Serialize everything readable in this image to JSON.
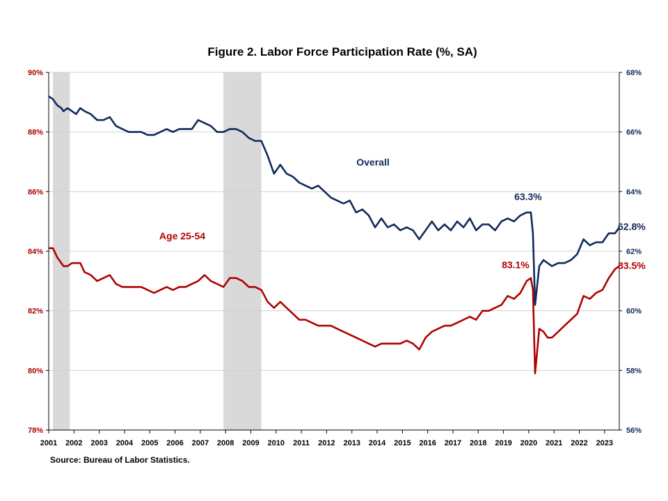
{
  "chart_data": {
    "type": "line",
    "title": "Figure 2. Labor Force Participation  Rate (%, SA)",
    "source": "Source: Bureau of Labor Statistics.",
    "x_ticks": [
      "2001",
      "2002",
      "2003",
      "2004",
      "2005",
      "2006",
      "2007",
      "2008",
      "2009",
      "2010",
      "2011",
      "2012",
      "2013",
      "2014",
      "2015",
      "2016",
      "2017",
      "2018",
      "2019",
      "2020",
      "2021",
      "2022",
      "2023"
    ],
    "y_left": {
      "ticks": [
        "78%",
        "80%",
        "82%",
        "84%",
        "86%",
        "88%",
        "90%"
      ],
      "ylim": [
        78,
        90
      ],
      "color": "#b00000"
    },
    "y_right": {
      "ticks": [
        "56%",
        "58%",
        "60%",
        "62%",
        "64%",
        "66%",
        "68%"
      ],
      "ylim": [
        56,
        68
      ],
      "color": "#0f2a5a"
    },
    "xlim": [
      "2001-01",
      "2023-08"
    ],
    "recessions": [
      {
        "start": "2001-03",
        "end": "2001-11"
      },
      {
        "start": "2007-12",
        "end": "2009-06"
      }
    ],
    "recession_color": "#d9d9d9",
    "series": [
      {
        "name": "Overall",
        "axis": "right",
        "color": "#0f2a5a",
        "points": [
          [
            "2001-01",
            67.2
          ],
          [
            "2001-03",
            67.1
          ],
          [
            "2001-05",
            66.9
          ],
          [
            "2001-07",
            66.8
          ],
          [
            "2001-08",
            66.7
          ],
          [
            "2001-10",
            66.8
          ],
          [
            "2001-12",
            66.7
          ],
          [
            "2002-02",
            66.6
          ],
          [
            "2002-04",
            66.8
          ],
          [
            "2002-06",
            66.7
          ],
          [
            "2002-09",
            66.6
          ],
          [
            "2002-12",
            66.4
          ],
          [
            "2003-03",
            66.4
          ],
          [
            "2003-06",
            66.5
          ],
          [
            "2003-09",
            66.2
          ],
          [
            "2003-12",
            66.1
          ],
          [
            "2004-03",
            66.0
          ],
          [
            "2004-06",
            66.0
          ],
          [
            "2004-09",
            66.0
          ],
          [
            "2004-12",
            65.9
          ],
          [
            "2005-03",
            65.9
          ],
          [
            "2005-06",
            66.0
          ],
          [
            "2005-09",
            66.1
          ],
          [
            "2005-12",
            66.0
          ],
          [
            "2006-03",
            66.1
          ],
          [
            "2006-06",
            66.1
          ],
          [
            "2006-09",
            66.1
          ],
          [
            "2006-12",
            66.4
          ],
          [
            "2007-03",
            66.3
          ],
          [
            "2007-06",
            66.2
          ],
          [
            "2007-09",
            66.0
          ],
          [
            "2007-12",
            66.0
          ],
          [
            "2008-03",
            66.1
          ],
          [
            "2008-06",
            66.1
          ],
          [
            "2008-09",
            66.0
          ],
          [
            "2008-12",
            65.8
          ],
          [
            "2009-03",
            65.7
          ],
          [
            "2009-06",
            65.7
          ],
          [
            "2009-09",
            65.2
          ],
          [
            "2009-12",
            64.6
          ],
          [
            "2010-03",
            64.9
          ],
          [
            "2010-06",
            64.6
          ],
          [
            "2010-09",
            64.5
          ],
          [
            "2010-12",
            64.3
          ],
          [
            "2011-03",
            64.2
          ],
          [
            "2011-06",
            64.1
          ],
          [
            "2011-09",
            64.2
          ],
          [
            "2011-12",
            64.0
          ],
          [
            "2012-03",
            63.8
          ],
          [
            "2012-06",
            63.7
          ],
          [
            "2012-09",
            63.6
          ],
          [
            "2012-12",
            63.7
          ],
          [
            "2013-03",
            63.3
          ],
          [
            "2013-06",
            63.4
          ],
          [
            "2013-09",
            63.2
          ],
          [
            "2013-12",
            62.8
          ],
          [
            "2014-03",
            63.1
          ],
          [
            "2014-06",
            62.8
          ],
          [
            "2014-09",
            62.9
          ],
          [
            "2014-12",
            62.7
          ],
          [
            "2015-03",
            62.8
          ],
          [
            "2015-06",
            62.7
          ],
          [
            "2015-09",
            62.4
          ],
          [
            "2015-12",
            62.7
          ],
          [
            "2016-03",
            63.0
          ],
          [
            "2016-06",
            62.7
          ],
          [
            "2016-09",
            62.9
          ],
          [
            "2016-12",
            62.7
          ],
          [
            "2017-03",
            63.0
          ],
          [
            "2017-06",
            62.8
          ],
          [
            "2017-09",
            63.1
          ],
          [
            "2017-12",
            62.7
          ],
          [
            "2018-03",
            62.9
          ],
          [
            "2018-06",
            62.9
          ],
          [
            "2018-09",
            62.7
          ],
          [
            "2018-12",
            63.0
          ],
          [
            "2019-03",
            63.1
          ],
          [
            "2019-06",
            63.0
          ],
          [
            "2019-09",
            63.2
          ],
          [
            "2019-12",
            63.3
          ],
          [
            "2020-02",
            63.3
          ],
          [
            "2020-03",
            62.6
          ],
          [
            "2020-04",
            60.2
          ],
          [
            "2020-06",
            61.5
          ],
          [
            "2020-08",
            61.7
          ],
          [
            "2020-10",
            61.6
          ],
          [
            "2020-12",
            61.5
          ],
          [
            "2021-03",
            61.6
          ],
          [
            "2021-06",
            61.6
          ],
          [
            "2021-09",
            61.7
          ],
          [
            "2021-12",
            61.9
          ],
          [
            "2022-03",
            62.4
          ],
          [
            "2022-06",
            62.2
          ],
          [
            "2022-09",
            62.3
          ],
          [
            "2022-12",
            62.3
          ],
          [
            "2023-03",
            62.6
          ],
          [
            "2023-06",
            62.6
          ],
          [
            "2023-08",
            62.8
          ]
        ]
      },
      {
        "name": "Age 25-54",
        "axis": "left",
        "color": "#b00000",
        "points": [
          [
            "2001-01",
            84.1
          ],
          [
            "2001-03",
            84.1
          ],
          [
            "2001-05",
            83.8
          ],
          [
            "2001-07",
            83.6
          ],
          [
            "2001-08",
            83.5
          ],
          [
            "2001-10",
            83.5
          ],
          [
            "2001-12",
            83.6
          ],
          [
            "2002-02",
            83.6
          ],
          [
            "2002-04",
            83.6
          ],
          [
            "2002-06",
            83.3
          ],
          [
            "2002-09",
            83.2
          ],
          [
            "2002-12",
            83.0
          ],
          [
            "2003-03",
            83.1
          ],
          [
            "2003-06",
            83.2
          ],
          [
            "2003-09",
            82.9
          ],
          [
            "2003-12",
            82.8
          ],
          [
            "2004-03",
            82.8
          ],
          [
            "2004-06",
            82.8
          ],
          [
            "2004-09",
            82.8
          ],
          [
            "2004-12",
            82.7
          ],
          [
            "2005-03",
            82.6
          ],
          [
            "2005-06",
            82.7
          ],
          [
            "2005-09",
            82.8
          ],
          [
            "2005-12",
            82.7
          ],
          [
            "2006-03",
            82.8
          ],
          [
            "2006-06",
            82.8
          ],
          [
            "2006-09",
            82.9
          ],
          [
            "2006-12",
            83.0
          ],
          [
            "2007-03",
            83.2
          ],
          [
            "2007-06",
            83.0
          ],
          [
            "2007-09",
            82.9
          ],
          [
            "2007-12",
            82.8
          ],
          [
            "2008-03",
            83.1
          ],
          [
            "2008-06",
            83.1
          ],
          [
            "2008-09",
            83.0
          ],
          [
            "2008-12",
            82.8
          ],
          [
            "2009-03",
            82.8
          ],
          [
            "2009-06",
            82.7
          ],
          [
            "2009-09",
            82.3
          ],
          [
            "2009-12",
            82.1
          ],
          [
            "2010-03",
            82.3
          ],
          [
            "2010-06",
            82.1
          ],
          [
            "2010-09",
            81.9
          ],
          [
            "2010-12",
            81.7
          ],
          [
            "2011-03",
            81.7
          ],
          [
            "2011-06",
            81.6
          ],
          [
            "2011-09",
            81.5
          ],
          [
            "2011-12",
            81.5
          ],
          [
            "2012-03",
            81.5
          ],
          [
            "2012-06",
            81.4
          ],
          [
            "2012-09",
            81.3
          ],
          [
            "2012-12",
            81.2
          ],
          [
            "2013-03",
            81.1
          ],
          [
            "2013-06",
            81.0
          ],
          [
            "2013-09",
            80.9
          ],
          [
            "2013-12",
            80.8
          ],
          [
            "2014-03",
            80.9
          ],
          [
            "2014-06",
            80.9
          ],
          [
            "2014-09",
            80.9
          ],
          [
            "2014-12",
            80.9
          ],
          [
            "2015-03",
            81.0
          ],
          [
            "2015-06",
            80.9
          ],
          [
            "2015-09",
            80.7
          ],
          [
            "2015-12",
            81.1
          ],
          [
            "2016-03",
            81.3
          ],
          [
            "2016-06",
            81.4
          ],
          [
            "2016-09",
            81.5
          ],
          [
            "2016-12",
            81.5
          ],
          [
            "2017-03",
            81.6
          ],
          [
            "2017-06",
            81.7
          ],
          [
            "2017-09",
            81.8
          ],
          [
            "2017-12",
            81.7
          ],
          [
            "2018-03",
            82.0
          ],
          [
            "2018-06",
            82.0
          ],
          [
            "2018-09",
            82.1
          ],
          [
            "2018-12",
            82.2
          ],
          [
            "2019-03",
            82.5
          ],
          [
            "2019-06",
            82.4
          ],
          [
            "2019-09",
            82.6
          ],
          [
            "2019-12",
            83.0
          ],
          [
            "2020-02",
            83.1
          ],
          [
            "2020-03",
            82.7
          ],
          [
            "2020-04",
            79.9
          ],
          [
            "2020-06",
            81.4
          ],
          [
            "2020-08",
            81.3
          ],
          [
            "2020-10",
            81.1
          ],
          [
            "2020-12",
            81.1
          ],
          [
            "2021-03",
            81.3
          ],
          [
            "2021-06",
            81.5
          ],
          [
            "2021-09",
            81.7
          ],
          [
            "2021-12",
            81.9
          ],
          [
            "2022-03",
            82.5
          ],
          [
            "2022-06",
            82.4
          ],
          [
            "2022-09",
            82.6
          ],
          [
            "2022-12",
            82.7
          ],
          [
            "2023-03",
            83.1
          ],
          [
            "2023-06",
            83.4
          ],
          [
            "2023-08",
            83.5
          ]
        ]
      }
    ],
    "annotations": [
      {
        "text": "Overall",
        "color": "#0f2a5a"
      },
      {
        "text": "Age 25-54",
        "color": "#b00000"
      },
      {
        "text": "63.3%",
        "color": "#0f2a5a",
        "at": [
          "2020-02",
          63.3
        ],
        "axis": "right"
      },
      {
        "text": "83.1%",
        "color": "#b00000",
        "at": [
          "2020-02",
          83.1
        ],
        "axis": "left"
      },
      {
        "text": "62.8%",
        "color": "#0f2a5a",
        "at": [
          "2023-08",
          62.8
        ],
        "axis": "right"
      },
      {
        "text": "83.5%",
        "color": "#b00000",
        "at": [
          "2023-08",
          83.5
        ],
        "axis": "left"
      }
    ],
    "grid": "horizontal",
    "legend": "none"
  }
}
